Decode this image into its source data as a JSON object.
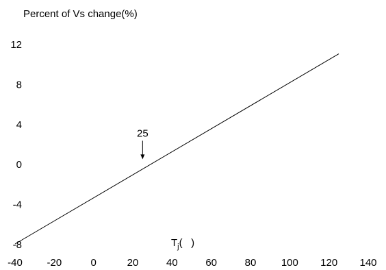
{
  "chart_data": {
    "type": "line",
    "title": "Percent of Vs change(%)",
    "xlabel": "T",
    "xlabel_sub": "j",
    "xlabel_rest": "(   )",
    "ylabel": "",
    "xlim": [
      -40,
      140
    ],
    "ylim": [
      -8,
      12
    ],
    "x_ticks": [
      -40,
      -20,
      0,
      20,
      40,
      60,
      80,
      100,
      120,
      140
    ],
    "y_ticks": [
      12,
      8,
      4,
      0,
      -4,
      -8
    ],
    "grid": false,
    "legend": "none",
    "series": [
      {
        "x": [
          -40,
          125
        ],
        "y": [
          -8,
          11
        ]
      }
    ],
    "annotation": {
      "text": "25",
      "x": 25,
      "y": 0.4
    },
    "line_color": "#000000"
  }
}
